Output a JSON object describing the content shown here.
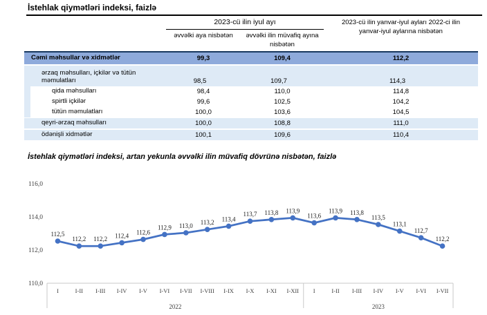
{
  "page": {
    "table_title": "İstehlak qiymətləri indeksi, faizlə",
    "chart_title": "İstehlak qiymətləri indeksi, artan yekunla əvvəlki ilin müvafiq dövrünə nisbətən, faizlə"
  },
  "table": {
    "col_group_header": "2023-cü ilin iyul ayı",
    "col2_header": "əvvəlki aya nisbətən",
    "col3_header": "əvvəlki ilin müvafiq ayına nisbətən",
    "col4_header": "2023-cü ilin yanvar-iyul ayları 2022-ci ilin yanvar-iyul aylarına nisbətən",
    "rows": [
      {
        "label": "Cəmi məhsullar və xidmətlər",
        "values": [
          "99,3",
          "109,4",
          "112,2"
        ]
      },
      {
        "label": "ərzaq məhsulları, içkilər və tütün məmulatları",
        "values": [
          "98,5",
          "109,7",
          "114,3"
        ]
      },
      {
        "label": "qida məhsulları",
        "values": [
          "98,4",
          "110,0",
          "114,8"
        ]
      },
      {
        "label": "spirtli içkilər",
        "values": [
          "99,6",
          "102,5",
          "104,2"
        ]
      },
      {
        "label": "tütün məmulatları",
        "values": [
          "100,0",
          "103,6",
          "104,5"
        ]
      },
      {
        "label": "qeyri-ərzaq məhsulları",
        "values": [
          "100,0",
          "108,8",
          "111,0"
        ]
      },
      {
        "label": "ödənişli xidmətlər",
        "values": [
          "100,1",
          "109,6",
          "110,4"
        ]
      }
    ]
  },
  "chart_data": {
    "type": "line",
    "title": "İstehlak qiymətləri indeksi, artan yekunla əvvəlki ilin müvafiq dövrünə nisbətən, faizlə",
    "x": [
      "I",
      "I-II",
      "I-III",
      "I-IV",
      "I-V",
      "I-VI",
      "I-VII",
      "I-VIII",
      "I-IX",
      "I-X",
      "I-XI",
      "I-XII",
      "I",
      "I-II",
      "I-III",
      "I-IV",
      "I-V",
      "I-VI",
      "I-VII"
    ],
    "year_groups": [
      {
        "label": "2022",
        "count": 12
      },
      {
        "label": "2023",
        "count": 7
      }
    ],
    "values": [
      112.5,
      112.2,
      112.2,
      112.4,
      112.6,
      112.9,
      113.0,
      113.2,
      113.4,
      113.7,
      113.8,
      113.9,
      113.6,
      113.9,
      113.8,
      113.5,
      113.1,
      112.7,
      112.2
    ],
    "data_labels": [
      "112,5",
      "112,2",
      "112,2",
      "112,4",
      "112,6",
      "112,9",
      "113,0",
      "113,2",
      "113,4",
      "113,7",
      "113,8",
      "113,9",
      "113,6",
      "113,9",
      "113,8",
      "113,5",
      "113,1",
      "112,7",
      "112,2"
    ],
    "ylim": [
      110,
      116
    ],
    "yticks": [
      {
        "label": "116,0",
        "value": 116
      },
      {
        "label": "114,0",
        "value": 114
      },
      {
        "label": "112,0",
        "value": 112
      },
      {
        "label": "110,0",
        "value": 110
      }
    ],
    "grid": false,
    "legend": "none",
    "xlabel": "",
    "ylabel": ""
  },
  "colors": {
    "total_row_bg": "#8EAADB",
    "subrow_bg": "#DEEAF6",
    "table_top_border": "#17375E",
    "line_color": "#4472C4",
    "axis_color": "#C9C9C9",
    "tick_text": "#404040"
  }
}
